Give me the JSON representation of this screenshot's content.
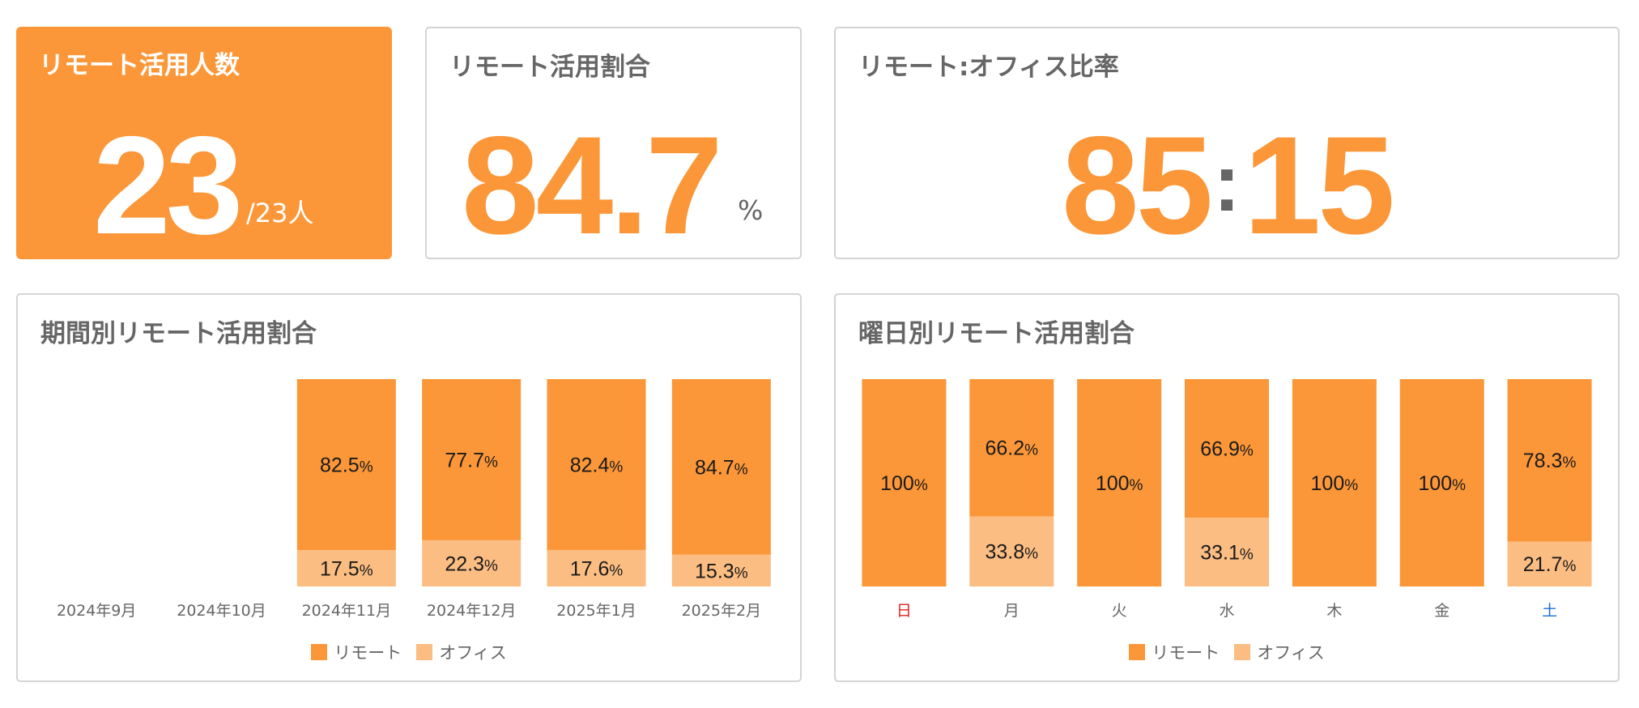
{
  "colors": {
    "remote": "#fb9738",
    "office": "#fbbd82",
    "sunday": "#e02020",
    "saturday": "#1a6fd0",
    "label": "#666666"
  },
  "kpi_people": {
    "title": "リモート活用人数",
    "value": "23",
    "suffix": "/23人"
  },
  "kpi_rate": {
    "title": "リモート活用割合",
    "value": "84.7",
    "unit": "%"
  },
  "kpi_ratio": {
    "title": "リモート:オフィス比率",
    "remote": "85",
    "separator": ":",
    "office": "15"
  },
  "chart_data": [
    {
      "type": "bar",
      "stacked": true,
      "title": "期間別リモート活用割合",
      "categories": [
        "2024年9月",
        "2024年10月",
        "2024年11月",
        "2024年12月",
        "2025年1月",
        "2025年2月"
      ],
      "series": [
        {
          "name": "リモート",
          "values": [
            null,
            null,
            82.5,
            77.7,
            82.4,
            84.7
          ]
        },
        {
          "name": "オフィス",
          "values": [
            null,
            null,
            17.5,
            22.3,
            17.6,
            15.3
          ]
        }
      ],
      "ylim": [
        0,
        100
      ],
      "grid": false,
      "legend": "bottom"
    },
    {
      "type": "bar",
      "stacked": true,
      "title": "曜日別リモート活用割合",
      "categories": [
        "日",
        "月",
        "火",
        "水",
        "木",
        "金",
        "土"
      ],
      "series": [
        {
          "name": "リモート",
          "values": [
            100,
            66.2,
            100,
            66.9,
            100,
            100,
            78.3
          ]
        },
        {
          "name": "オフィス",
          "values": [
            0,
            33.8,
            0,
            33.1,
            0,
            0,
            21.7
          ]
        }
      ],
      "ylim": [
        0,
        100
      ],
      "grid": false,
      "legend": "bottom"
    }
  ]
}
